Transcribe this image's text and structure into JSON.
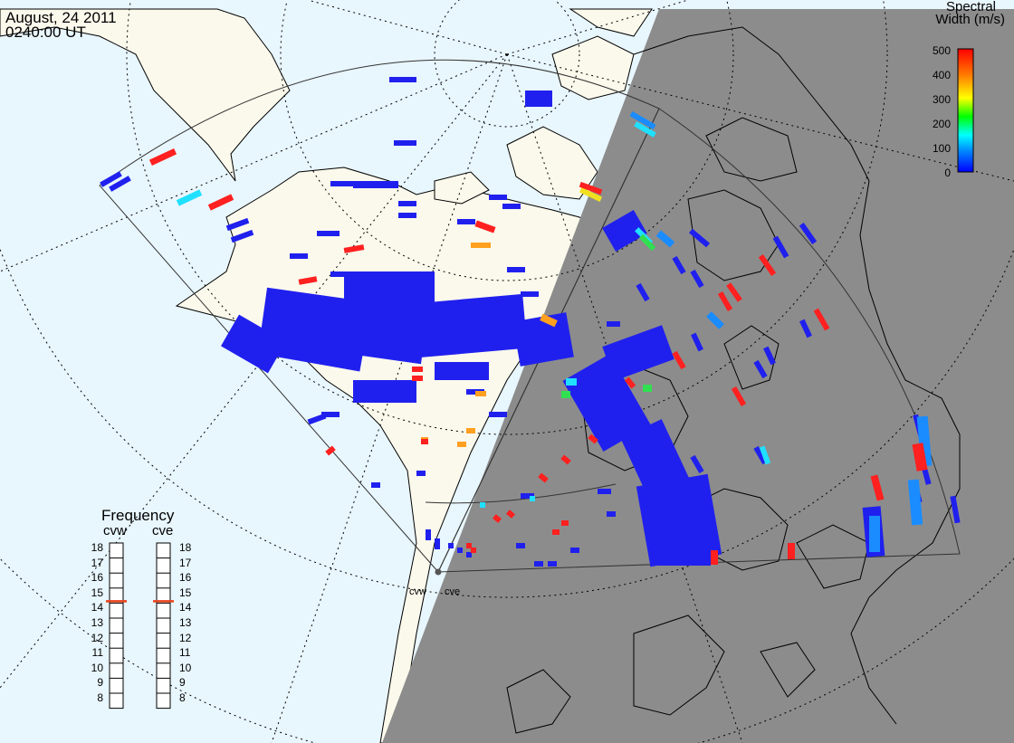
{
  "header": {
    "date": "August, 24 2011",
    "time": "0240:00 UT"
  },
  "legend": {
    "title_line1": "Spectral",
    "title_line2": "Width (m/s)",
    "ticks": [
      "500",
      "400",
      "300",
      "200",
      "100",
      "0"
    ],
    "scale_min": 0,
    "scale_max": 500
  },
  "frequency": {
    "title": "Frequency",
    "radars": [
      "cvw",
      "cve"
    ],
    "levels": [
      "18",
      "17",
      "16",
      "15",
      "14",
      "13",
      "12",
      "11",
      "10",
      "9",
      "8"
    ],
    "selected": {
      "cvw": 15,
      "cve": 15
    }
  },
  "site_labels": [
    "cvw",
    "cve"
  ],
  "colors": {
    "ocean": "#e8f6fd",
    "land_day": "#fbf9ec",
    "night": "#8c8c8c",
    "echo_low": "#2020ee",
    "freq_marker": "#e8401a"
  }
}
